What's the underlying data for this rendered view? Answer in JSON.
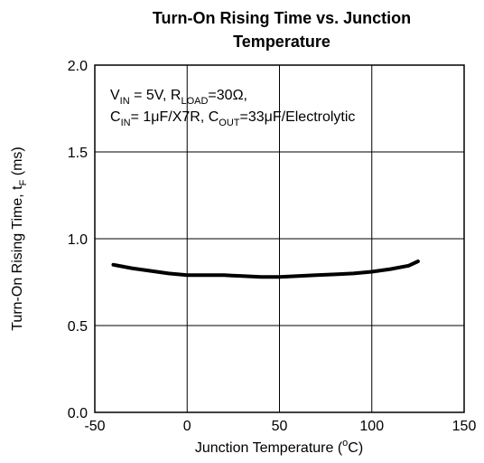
{
  "chart_data": {
    "type": "line",
    "title_line1": "Turn-On Rising Time vs. Junction",
    "title_line2": "Temperature",
    "xlabel_main": "Junction Temperature (",
    "xlabel_sup": "o",
    "xlabel_end": "C)",
    "ylabel_main": "Turn-On Rising Time, t",
    "ylabel_sub": "F",
    "ylabel_end": " (ms)",
    "xlim": [
      -50,
      150
    ],
    "ylim": [
      0.0,
      2.0
    ],
    "xticks": [
      -50,
      0,
      50,
      100,
      150
    ],
    "xtick_labels": [
      "-50",
      "0",
      "50",
      "100",
      "150"
    ],
    "yticks": [
      0.0,
      0.5,
      1.0,
      1.5,
      2.0
    ],
    "ytick_labels": [
      "0.0",
      "0.5",
      "1.0",
      "1.5",
      "2.0"
    ],
    "grid": true,
    "annotation": {
      "line1": {
        "v": "V",
        "v_sub": "IN",
        "v_val": " = 5V, R",
        "r_sub": "LOAD",
        "r_val": "=30Ω,"
      },
      "line2": {
        "c": "C",
        "c_sub": "IN",
        "c_val": "= 1μF/X7R, C",
        "cout_sub": "OUT",
        "cout_val": "=33μF/Electrolytic"
      }
    },
    "series": [
      {
        "x": [
          -40,
          -30,
          -20,
          -10,
          0,
          10,
          20,
          30,
          40,
          50,
          60,
          70,
          80,
          90,
          100,
          110,
          120,
          125
        ],
        "values": [
          0.85,
          0.83,
          0.815,
          0.8,
          0.79,
          0.79,
          0.79,
          0.785,
          0.78,
          0.78,
          0.785,
          0.79,
          0.795,
          0.8,
          0.81,
          0.825,
          0.845,
          0.87
        ]
      }
    ]
  }
}
